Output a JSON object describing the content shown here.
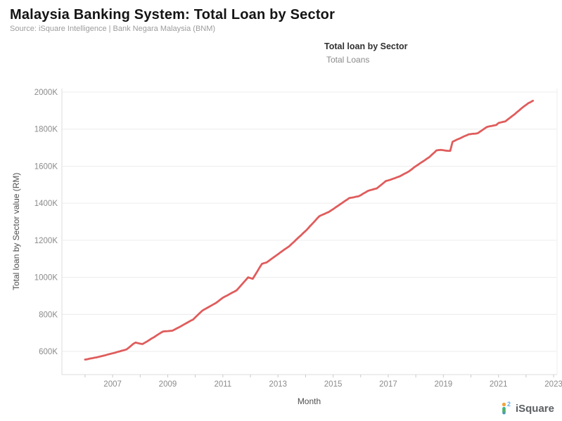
{
  "header": {
    "title": "Malaysia Banking System: Total Loan by Sector",
    "source": "Source: iSquare Intelligence | Bank Negara Malaysia (BNM)"
  },
  "legend": {
    "title": "Total loan by Sector",
    "entry": "Total Loans"
  },
  "footer": {
    "brand": "iSquare",
    "logo_colors": {
      "dot": "#f2a33c",
      "bar_top": "#2bb5a0",
      "bar_mid": "#57b35f",
      "bar_bottom": "#3f8fd6",
      "sup": "#6aaae4"
    }
  },
  "chart_data": {
    "type": "line",
    "title": "Malaysia Banking System: Total Loan by Sector",
    "xlabel": "Month",
    "ylabel": "Total loan by Sector value (RM)",
    "legend_position": "top-center",
    "grid": "horizontal",
    "line_color": "#e05c5c",
    "grid_color": "#ececec",
    "axis_color": "#dedede",
    "tick_color": "#c9c9c9",
    "xlim": [
      2005.16,
      2023.1
    ],
    "ylim": [
      475,
      2019
    ],
    "y_tick_labels": [
      "600K",
      "800K",
      "1000K",
      "1200K",
      "1400K",
      "1600K",
      "1800K",
      "2000K"
    ],
    "y_tick_values": [
      600,
      800,
      1000,
      1200,
      1400,
      1600,
      1800,
      2000
    ],
    "x_tick_labels": [
      "2007",
      "2009",
      "2011",
      "2013",
      "2015",
      "2017",
      "2019",
      "2021",
      "2023"
    ],
    "x_tick_values": [
      2007,
      2009,
      2011,
      2013,
      2015,
      2017,
      2019,
      2021,
      2023
    ],
    "x_minor_tick_years": [
      2006,
      2007,
      2008,
      2009,
      2010,
      2011,
      2012,
      2013,
      2014,
      2015,
      2016,
      2017,
      2018,
      2019,
      2020,
      2021,
      2022,
      2023
    ],
    "series": [
      {
        "name": "Total Loans",
        "units": "RM thousands (K) of millions",
        "start_year": 2006,
        "start_month": 1,
        "frequency": "monthly",
        "values": [
          556,
          558,
          561,
          563,
          566,
          568,
          571,
          574,
          577,
          580,
          584,
          587,
          590,
          593,
          597,
          600,
          604,
          607,
          611,
          620,
          630,
          641,
          648,
          645,
          642,
          640,
          647,
          654,
          662,
          670,
          677,
          685,
          693,
          701,
          708,
          709,
          710,
          711,
          712,
          718,
          725,
          731,
          738,
          745,
          752,
          759,
          766,
          772,
          784,
          796,
          808,
          820,
          827,
          834,
          841,
          848,
          855,
          862,
          871,
          881,
          890,
          897,
          903,
          910,
          917,
          923,
          930,
          944,
          958,
          972,
          986,
          1000,
          996,
          992,
          1012,
          1032,
          1053,
          1073,
          1077,
          1080,
          1089,
          1098,
          1107,
          1116,
          1125,
          1134,
          1143,
          1152,
          1160,
          1169,
          1181,
          1192,
          1204,
          1216,
          1227,
          1239,
          1250,
          1263,
          1277,
          1290,
          1303,
          1317,
          1330,
          1336,
          1341,
          1347,
          1352,
          1360,
          1368,
          1377,
          1385,
          1394,
          1402,
          1411,
          1419,
          1428,
          1430,
          1432,
          1435,
          1437,
          1443,
          1451,
          1458,
          1466,
          1470,
          1473,
          1477,
          1480,
          1490,
          1500,
          1510,
          1520,
          1523,
          1527,
          1532,
          1536,
          1541,
          1545,
          1552,
          1559,
          1565,
          1572,
          1581,
          1591,
          1600,
          1608,
          1617,
          1625,
          1633,
          1642,
          1650,
          1662,
          1673,
          1685,
          1687,
          1688,
          1686,
          1684,
          1683,
          1683,
          1732,
          1738,
          1744,
          1749,
          1755,
          1761,
          1766,
          1772,
          1773,
          1775,
          1776,
          1778,
          1787,
          1795,
          1804,
          1812,
          1815,
          1817,
          1820,
          1822,
          1833,
          1836,
          1839,
          1842,
          1852,
          1861,
          1871,
          1880,
          1891,
          1901,
          1912,
          1922,
          1931,
          1940,
          1946,
          1953
        ]
      }
    ]
  }
}
